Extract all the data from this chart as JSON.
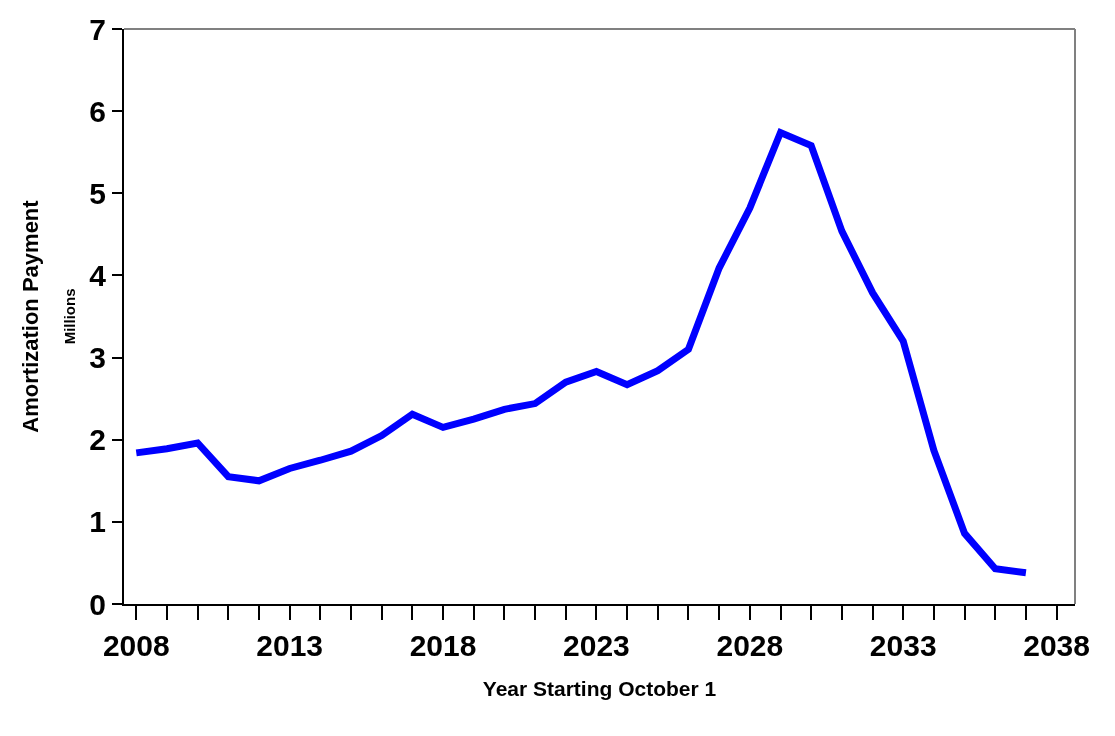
{
  "chart_data": {
    "type": "line",
    "xlabel": "Year Starting October 1",
    "ylabel": "Amortization Payment",
    "annotations": [
      "Millions"
    ],
    "x": [
      2008,
      2009,
      2010,
      2011,
      2012,
      2013,
      2014,
      2015,
      2016,
      2017,
      2018,
      2019,
      2020,
      2021,
      2022,
      2023,
      2024,
      2025,
      2026,
      2027,
      2028,
      2029,
      2030,
      2031,
      2032,
      2033,
      2034,
      2035,
      2036,
      2037
    ],
    "series": [
      {
        "color": "#0000ff",
        "values": [
          1.84,
          1.89,
          1.96,
          1.55,
          1.5,
          1.65,
          1.75,
          1.86,
          2.05,
          2.31,
          2.15,
          2.25,
          2.37,
          2.44,
          2.7,
          2.83,
          2.67,
          2.84,
          3.1,
          4.09,
          4.82,
          5.74,
          5.58,
          4.54,
          3.79,
          3.2,
          1.87,
          0.86,
          0.43,
          0.38
        ]
      }
    ],
    "xlim": [
      2007.6,
      2038.6
    ],
    "xticks": [
      2008,
      2013,
      2018,
      2023,
      2028,
      2033,
      2038
    ],
    "ylim": [
      0,
      7
    ],
    "yticks": [
      0,
      1,
      2,
      3,
      4,
      5,
      6,
      7
    ],
    "marker": "none",
    "line_style": "solid"
  }
}
